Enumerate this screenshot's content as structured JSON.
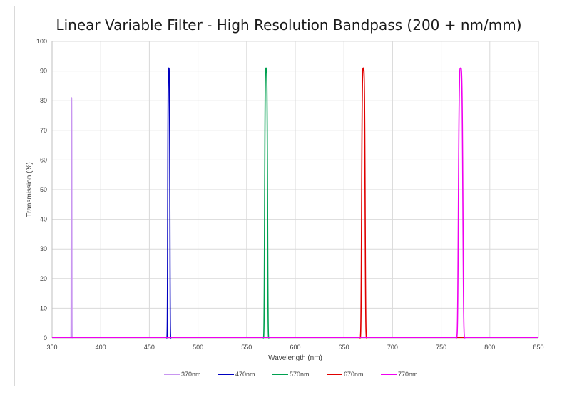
{
  "chart_data": {
    "type": "line",
    "title": "Linear Variable Filter - High Resolution Bandpass (200 + nm/mm)",
    "xlabel": "Wavelength (nm)",
    "ylabel": "Transmission (%)",
    "xlim": [
      350,
      850
    ],
    "ylim": [
      0,
      100
    ],
    "xticks": [
      350,
      400,
      450,
      500,
      550,
      600,
      650,
      700,
      750,
      800,
      850
    ],
    "yticks": [
      0,
      10,
      20,
      30,
      40,
      50,
      60,
      70,
      80,
      90,
      100
    ],
    "grid": true,
    "legend_position": "bottom",
    "series": [
      {
        "name": "370nm",
        "color": "#c896f0",
        "center": 370,
        "peak": 81,
        "fwhm": 0.7
      },
      {
        "name": "470nm",
        "color": "#0000c0",
        "center": 470,
        "peak": 91,
        "fwhm": 2.2
      },
      {
        "name": "570nm",
        "color": "#00a050",
        "center": 570,
        "peak": 91,
        "fwhm": 3.0
      },
      {
        "name": "670nm",
        "color": "#e00000",
        "center": 670,
        "peak": 91,
        "fwhm": 3.6
      },
      {
        "name": "770nm",
        "color": "#f000f0",
        "center": 770,
        "peak": 91,
        "fwhm": 4.6
      }
    ]
  }
}
